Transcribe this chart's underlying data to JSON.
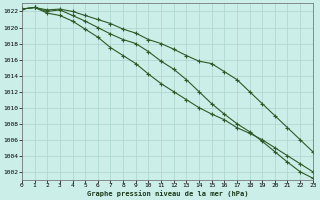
{
  "title": "Graphe pression niveau de la mer (hPa)",
  "background_color": "#cceee8",
  "grid_color": "#aad4cc",
  "line_color": "#2d5a27",
  "x_ticks": [
    0,
    1,
    2,
    3,
    4,
    5,
    6,
    7,
    8,
    9,
    10,
    11,
    12,
    13,
    14,
    15,
    16,
    17,
    18,
    19,
    20,
    21,
    22,
    23
  ],
  "y_ticks": [
    1002,
    1004,
    1006,
    1008,
    1010,
    1012,
    1014,
    1016,
    1018,
    1020,
    1022
  ],
  "ylim": [
    1001.0,
    1023.0
  ],
  "xlim": [
    0,
    23
  ],
  "series": [
    [
      1022.3,
      1022.5,
      1022.2,
      1022.3,
      1022.0,
      1021.5,
      1021.0,
      1020.5,
      1019.8,
      1019.3,
      1018.5,
      1018.0,
      1017.3,
      1016.5,
      1015.8,
      1015.5,
      1014.5,
      1013.5,
      1012.0,
      1010.5,
      1009.0,
      1007.5,
      1006.0,
      1004.5
    ],
    [
      1022.3,
      1022.5,
      1022.0,
      1022.2,
      1021.5,
      1020.8,
      1020.0,
      1019.2,
      1018.5,
      1018.0,
      1017.0,
      1015.8,
      1014.8,
      1013.5,
      1012.0,
      1010.5,
      1009.2,
      1008.0,
      1007.0,
      1005.8,
      1004.5,
      1003.2,
      1002.0,
      1001.2
    ],
    [
      1022.3,
      1022.5,
      1021.8,
      1021.5,
      1020.8,
      1019.8,
      1018.8,
      1017.5,
      1016.5,
      1015.5,
      1014.2,
      1013.0,
      1012.0,
      1011.0,
      1010.0,
      1009.2,
      1008.5,
      1007.5,
      1006.8,
      1006.0,
      1005.0,
      1004.0,
      1003.0,
      1002.0
    ]
  ]
}
